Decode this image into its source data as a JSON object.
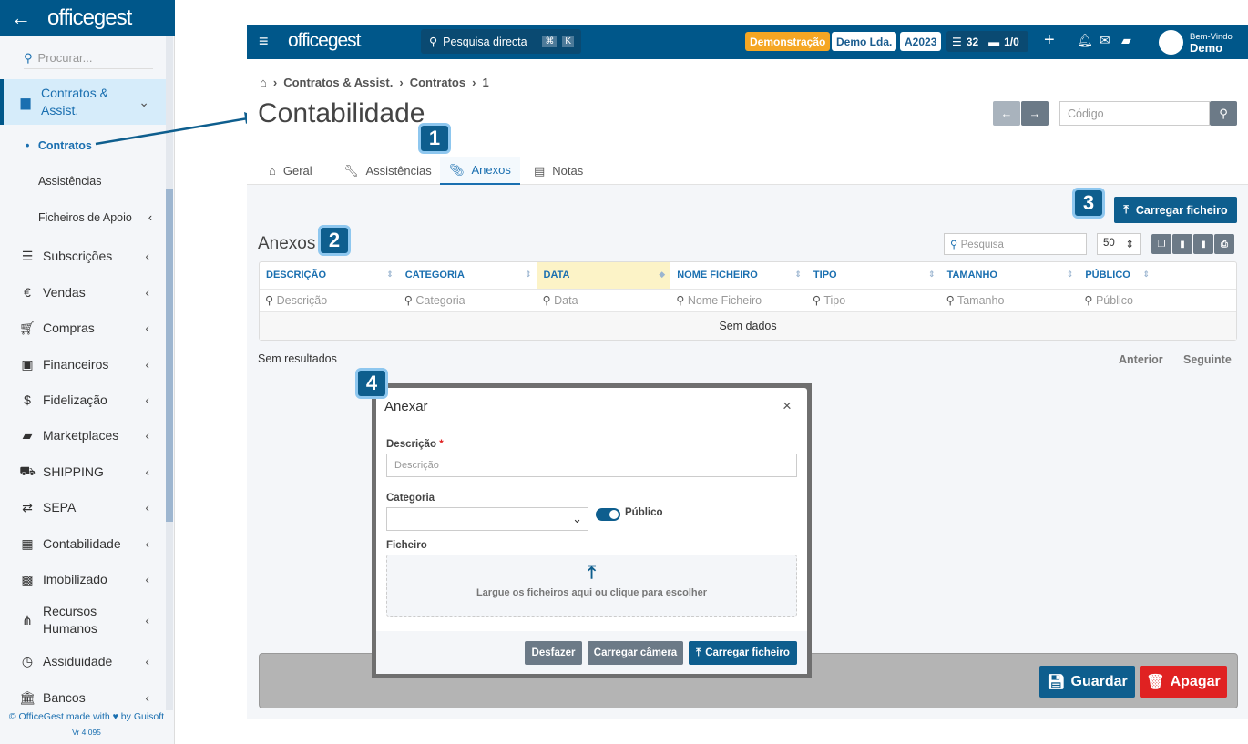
{
  "sidebar": {
    "logo": "officegest",
    "search_placeholder": "Procurar...",
    "active_group": "Contratos & Assist.",
    "sub_items": [
      "Contratos",
      "Assistências",
      "Ficheiros de Apoio"
    ],
    "items": [
      {
        "label": "Subscrições",
        "icon": "list-icon"
      },
      {
        "label": "Vendas",
        "icon": "euro-icon"
      },
      {
        "label": "Compras",
        "icon": "cart-icon"
      },
      {
        "label": "Financeiros",
        "icon": "money-icon"
      },
      {
        "label": "Fidelização",
        "icon": "hand-dollar-icon"
      },
      {
        "label": "Marketplaces",
        "icon": "bag-icon"
      },
      {
        "label": "SHIPPING",
        "icon": "truck-icon"
      },
      {
        "label": "SEPA",
        "icon": "exchange-icon"
      },
      {
        "label": "Contabilidade",
        "icon": "calculator-icon"
      },
      {
        "label": "Imobilizado",
        "icon": "boxes-icon"
      },
      {
        "label": "Recursos Humanos",
        "icon": "sitemap-icon"
      },
      {
        "label": "Assiduidade",
        "icon": "clock-icon"
      },
      {
        "label": "Bancos",
        "icon": "bank-icon"
      }
    ],
    "footer": "© OfficeGest made with ♥ by Guisoft",
    "version": "Vr 4.095"
  },
  "header": {
    "logo": "officegest",
    "search": "Pesquisa directa",
    "kbd1": "⌘",
    "kbd2": "K",
    "demo": "Demonstração",
    "company": "Demo Lda.",
    "year": "A2023",
    "tasks": "32",
    "folders": "1/0",
    "welcome": "Bem-Vindo",
    "user": "Demo",
    "accent": "#00578a"
  },
  "breadcrumb": [
    "Contratos & Assist.",
    "Contratos",
    "1"
  ],
  "page": {
    "title": "Contabilidade",
    "code_placeholder": "Código"
  },
  "tabs": [
    "Geral",
    "Assistências",
    "Anexos",
    "Notas"
  ],
  "anexos": {
    "title": "Anexos",
    "upload": "Carregar ficheiro",
    "search_placeholder": "Pesquisa",
    "page_size": "50",
    "columns": [
      "DESCRIÇÃO",
      "CATEGORIA",
      "DATA",
      "NOME FICHEIRO",
      "TIPO",
      "TAMANHO",
      "PÚBLICO"
    ],
    "filters": [
      "Descrição",
      "Categoria",
      "Data",
      "Nome Ficheiro",
      "Tipo",
      "Tamanho",
      "Público"
    ],
    "empty": "Sem dados",
    "results": "Sem resultados",
    "prev": "Anterior",
    "next": "Seguinte"
  },
  "modal": {
    "title": "Anexar",
    "desc_label": "Descrição",
    "desc_placeholder": "Descrição",
    "cat_label": "Categoria",
    "public_label": "Público",
    "public_on": true,
    "file_label": "Ficheiro",
    "drop_text": "Largue os ficheiros aqui ou clique para escolher",
    "undo": "Desfazer",
    "camera": "Carregar câmera",
    "upload": "Carregar ficheiro"
  },
  "footer_bar": {
    "save": "Guardar",
    "delete": "Apagar"
  },
  "annotations": [
    "1",
    "2",
    "3",
    "4"
  ]
}
